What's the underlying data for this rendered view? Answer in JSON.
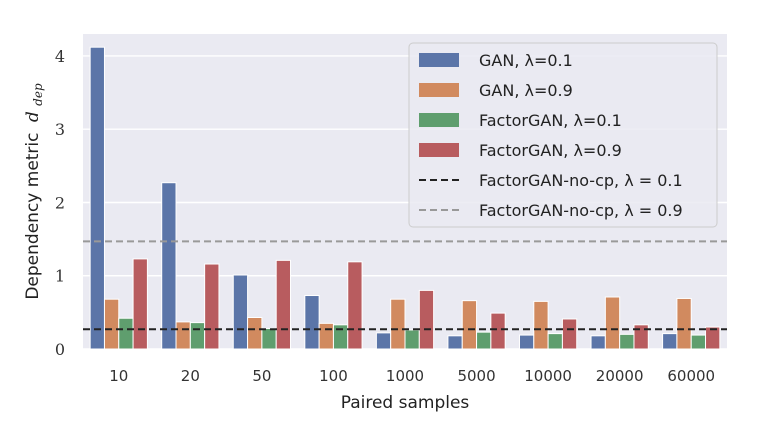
{
  "chart_data": {
    "type": "bar",
    "title": "",
    "xlabel": "Paired samples",
    "ylabel": "Dependency metric",
    "ylabel_subscript": "dep",
    "ylabel_symbol": "d",
    "categories": [
      "10",
      "20",
      "50",
      "100",
      "1000",
      "5000",
      "10000",
      "20000",
      "60000"
    ],
    "ylim": [
      0,
      4.3
    ],
    "yticks": [
      0,
      1,
      2,
      3,
      4
    ],
    "ytick_labels": [
      "0",
      "1",
      "2",
      "3",
      "4"
    ],
    "grid": true,
    "legend_position": "top-right",
    "series": [
      {
        "name": "GAN, λ=0.1",
        "color": "#5b75a8",
        "values": [
          4.12,
          2.27,
          1.01,
          0.73,
          0.22,
          0.18,
          0.19,
          0.18,
          0.21
        ]
      },
      {
        "name": "GAN, λ=0.9",
        "color": "#d18a5f",
        "values": [
          0.68,
          0.37,
          0.43,
          0.35,
          0.68,
          0.66,
          0.65,
          0.71,
          0.69
        ]
      },
      {
        "name": "FactorGAN, λ=0.1",
        "color": "#5f9e6e",
        "values": [
          0.42,
          0.36,
          0.28,
          0.33,
          0.26,
          0.23,
          0.21,
          0.2,
          0.19
        ]
      },
      {
        "name": "FactorGAN, λ=0.9",
        "color": "#b85c5f",
        "values": [
          1.23,
          1.16,
          1.21,
          1.19,
          0.8,
          0.49,
          0.41,
          0.33,
          0.3
        ]
      }
    ],
    "reference_lines": [
      {
        "name": "FactorGAN-no-cp, λ = 0.1",
        "value": 0.27,
        "color": "#222222",
        "style": "dashed"
      },
      {
        "name": "FactorGAN-no-cp, λ = 0.9",
        "value": 1.47,
        "color": "#999999",
        "style": "dashed"
      }
    ]
  }
}
